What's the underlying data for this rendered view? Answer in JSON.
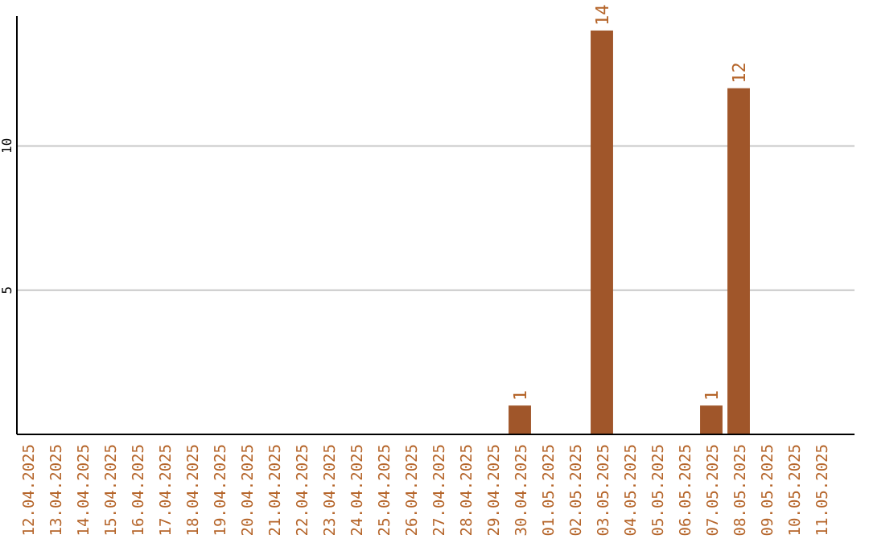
{
  "chart_data": {
    "type": "bar",
    "categories": [
      "12.04.2025",
      "13.04.2025",
      "14.04.2025",
      "15.04.2025",
      "16.04.2025",
      "17.04.2025",
      "18.04.2025",
      "19.04.2025",
      "20.04.2025",
      "21.04.2025",
      "22.04.2025",
      "23.04.2025",
      "24.04.2025",
      "25.04.2025",
      "26.04.2025",
      "27.04.2025",
      "28.04.2025",
      "29.04.2025",
      "30.04.2025",
      "01.05.2025",
      "02.05.2025",
      "03.05.2025",
      "04.05.2025",
      "05.05.2025",
      "06.05.2025",
      "07.05.2025",
      "08.05.2025",
      "09.05.2025",
      "10.05.2025",
      "11.05.2025"
    ],
    "values": [
      0,
      0,
      0,
      0,
      0,
      0,
      0,
      0,
      0,
      0,
      0,
      0,
      0,
      0,
      0,
      0,
      0,
      0,
      1,
      0,
      0,
      14,
      0,
      0,
      0,
      1,
      12,
      0,
      0,
      0
    ],
    "value_labels": [
      null,
      null,
      null,
      null,
      null,
      null,
      null,
      null,
      null,
      null,
      null,
      null,
      null,
      null,
      null,
      null,
      null,
      null,
      "1",
      null,
      null,
      "14",
      null,
      null,
      null,
      "1",
      "12",
      null,
      null,
      null
    ],
    "color": "#a0562a",
    "ylim": [
      0,
      14.5
    ],
    "yticks": [
      5,
      10
    ],
    "grid": "y"
  }
}
